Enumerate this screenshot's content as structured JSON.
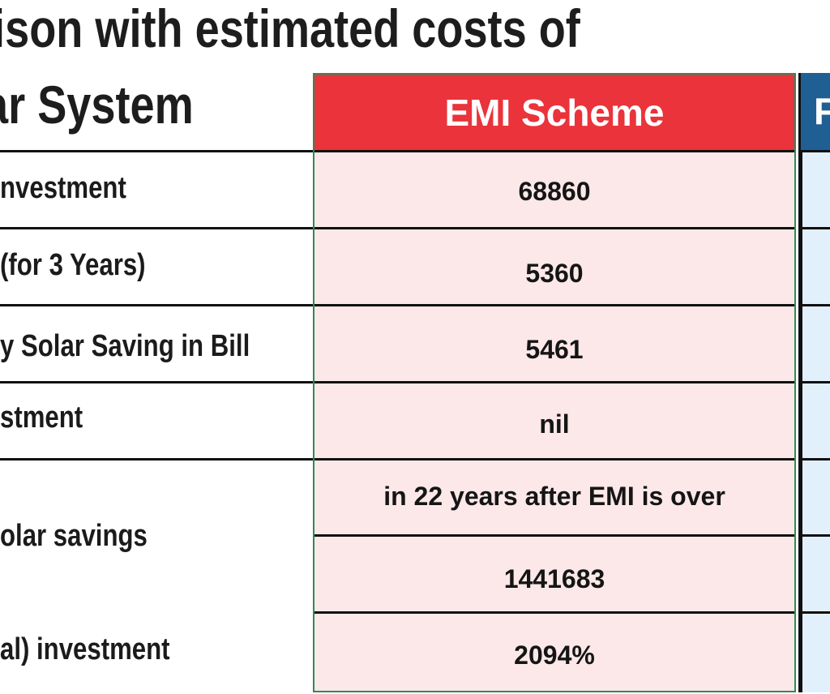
{
  "title": {
    "line1": "rison with estimated costs of",
    "line2": "ar System"
  },
  "columns": {
    "emi_header": "EMI Scheme",
    "right_header_partial": "F"
  },
  "rows": [
    {
      "label": "nvestment",
      "emi": "68860"
    },
    {
      "label": " (for 3 Years)",
      "emi": "5360"
    },
    {
      "label": "y Solar Saving in Bill",
      "emi": "5461"
    },
    {
      "label": "stment",
      "emi": "nil"
    },
    {
      "label": "olar savings",
      "emi_line1": "in 22 years after EMI is over",
      "emi_line2": "1441683"
    },
    {
      "label": "al) investment",
      "emi": "2094%"
    }
  ],
  "colors": {
    "emi_header_bg": "#ea333a",
    "emi_cell_bg": "#fce8e8",
    "right_header_bg": "#1f5f94",
    "right_cell_bg": "#e2f0fb",
    "emi_border": "#2e8b57"
  }
}
